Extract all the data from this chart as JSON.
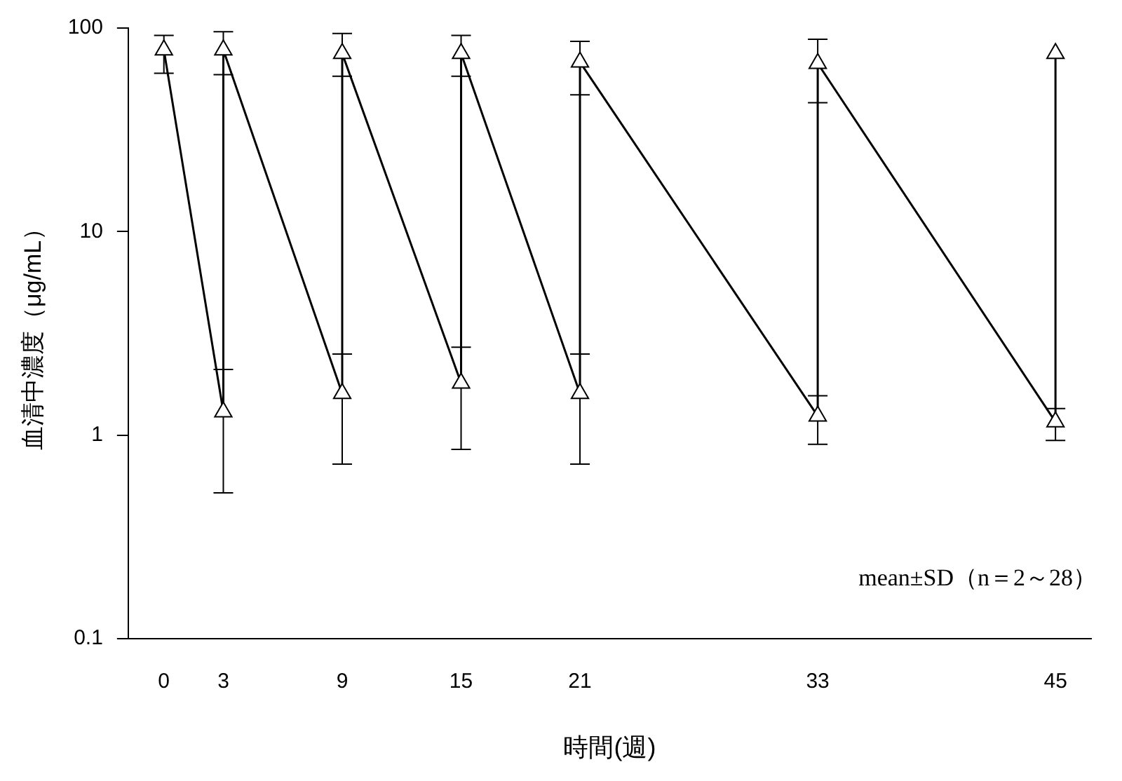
{
  "chart_data": {
    "type": "line",
    "xlabel": "時間(週)",
    "ylabel": "血清中濃度（μg/mL）",
    "x": [
      0,
      3,
      3,
      9,
      9,
      15,
      15,
      21,
      21,
      33,
      33,
      45,
      45
    ],
    "xlim": [
      -1.8,
      46.8
    ],
    "xticks": [
      0,
      3,
      9,
      15,
      21,
      33,
      45
    ],
    "ylim": [
      0.1,
      100
    ],
    "yticks": [
      0.1,
      1,
      10,
      100
    ],
    "log": "y",
    "series": [
      {
        "color": "#000000",
        "values": [
          78,
          1.3,
          78,
          1.6,
          75,
          1.8,
          75,
          1.6,
          68,
          1.24,
          67,
          1.16,
          75
        ],
        "errors": [
          [
            60,
            92
          ],
          [
            0.52,
            2.1
          ],
          [
            59,
            96
          ],
          [
            0.72,
            2.5
          ],
          [
            58,
            94
          ],
          [
            0.85,
            2.7
          ],
          [
            58,
            92
          ],
          [
            0.72,
            2.5
          ],
          [
            47,
            86
          ],
          [
            0.9,
            1.56
          ],
          [
            43,
            88
          ],
          [
            0.94,
            1.35
          ],
          null
        ]
      }
    ],
    "marker": "triangle",
    "line_style": "solid",
    "grid": false,
    "legend": false,
    "annotations": [
      "mean±SD（n＝2～28）"
    ]
  }
}
